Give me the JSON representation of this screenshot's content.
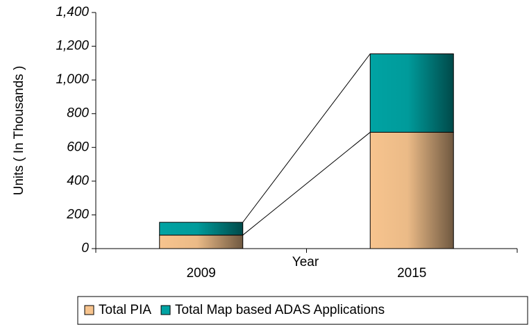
{
  "chart_data": {
    "type": "stacked_bar",
    "x_label": "Year",
    "y_label": "Units ( In Thousands )",
    "categories": [
      "2009",
      "2015"
    ],
    "series": [
      {
        "name": "Total PIA",
        "color": "#f7c48e",
        "values": [
          80,
          690
        ]
      },
      {
        "name": "Total Map based ADAS Applications",
        "color": "#00a3a3",
        "values": [
          76,
          465
        ]
      }
    ],
    "ylim": [
      0,
      1400
    ],
    "yticks": [
      0,
      200,
      400,
      600,
      800,
      {
        "value": 1000,
        "label": "1,000"
      },
      {
        "value": 1200,
        "label": "1,200"
      },
      {
        "value": 1400,
        "label": "1,400"
      }
    ],
    "legend": "bottom",
    "series_lines": true
  }
}
